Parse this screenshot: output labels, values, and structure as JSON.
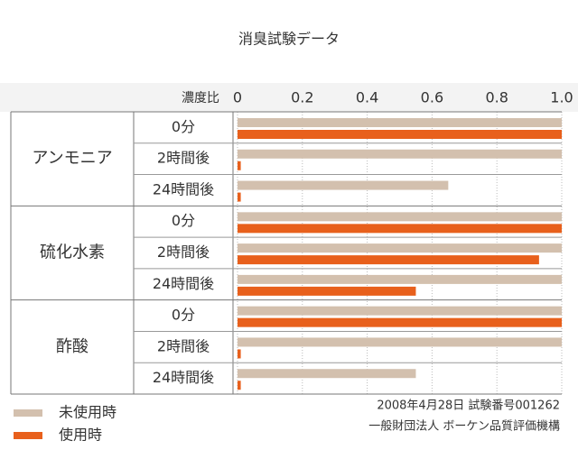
{
  "chart_data": {
    "type": "grouped-hbar",
    "title": "消臭試験データ",
    "xlabel": "濃度比",
    "groups": [
      "アンモニア",
      "硫化水素",
      "酢酸"
    ],
    "categories": [
      "0分",
      "2時間後",
      "24時間後",
      "0分",
      "2時間後",
      "24時間後",
      "0分",
      "2時間後",
      "24時間後"
    ],
    "series": [
      {
        "name": "未使用時",
        "color": "#d3c0ae",
        "values": [
          1.0,
          1.0,
          0.65,
          1.0,
          1.0,
          1.0,
          1.0,
          1.0,
          0.55
        ]
      },
      {
        "name": "使用時",
        "color": "#e8601c",
        "values": [
          1.0,
          0.01,
          0.01,
          1.0,
          0.93,
          0.55,
          1.0,
          0.01,
          0.01
        ]
      }
    ],
    "xlim": [
      0,
      1
    ],
    "xticks": [
      0,
      0.2,
      0.4,
      0.6,
      0.8,
      {
        "value": 1,
        "label": "1.0"
      }
    ],
    "grid": true,
    "notes": [
      "2008年4月28日 試験番号001262",
      "一般財団法人 ボーケン品質評価機構"
    ]
  }
}
